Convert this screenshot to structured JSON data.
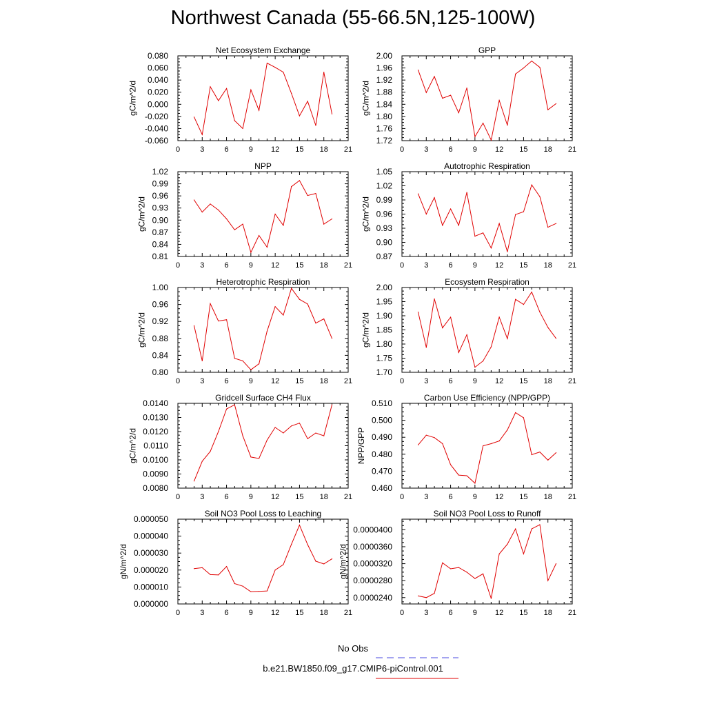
{
  "title": "Northwest Canada (55-66.5N,125-100W)",
  "legend": {
    "obs_label": "No Obs",
    "model_label": "b.e21.BW1850.f09_g17.CMIP6-piControl.001",
    "obs_color": "#4a4ae0",
    "model_color": "#e00000"
  },
  "chart_data": [
    {
      "type": "line",
      "title": "Net Ecosystem Exchange",
      "xlabel": "",
      "ylabel": "gC/m^2/d",
      "xlim": [
        0,
        21
      ],
      "xticks": [
        0,
        3,
        6,
        9,
        12,
        15,
        18,
        21
      ],
      "ylim": [
        -0.06,
        0.08
      ],
      "yticks": [
        "-0.060",
        "-0.040",
        "-0.020",
        "0.000",
        "0.020",
        "0.040",
        "0.060",
        "0.080"
      ],
      "x": [
        2,
        3,
        4,
        5,
        6,
        7,
        8,
        9,
        10,
        11,
        12,
        13,
        14,
        15,
        16,
        17,
        18,
        19
      ],
      "series": [
        {
          "values": [
            -0.021,
            -0.05,
            0.029,
            0.006,
            0.026,
            -0.027,
            -0.04,
            0.024,
            -0.01,
            0.068,
            0.061,
            0.053,
            0.018,
            -0.019,
            0.005,
            -0.035,
            0.053,
            -0.016
          ]
        }
      ]
    },
    {
      "type": "line",
      "title": "GPP",
      "xlabel": "",
      "ylabel": "gC/m^2/d",
      "xlim": [
        0,
        21
      ],
      "xticks": [
        0,
        3,
        6,
        9,
        12,
        15,
        18,
        21
      ],
      "ylim": [
        1.72,
        2.0
      ],
      "yticks": [
        "1.72",
        "1.76",
        "1.80",
        "1.84",
        "1.88",
        "1.92",
        "1.96",
        "2.00"
      ],
      "x": [
        2,
        3,
        4,
        5,
        6,
        7,
        8,
        9,
        10,
        11,
        12,
        13,
        14,
        15,
        16,
        17,
        18,
        19
      ],
      "series": [
        {
          "values": [
            1.953,
            1.879,
            1.932,
            1.86,
            1.87,
            1.812,
            1.894,
            1.733,
            1.778,
            1.722,
            1.853,
            1.771,
            1.94,
            1.96,
            1.983,
            1.962,
            1.822,
            1.842
          ]
        }
      ]
    },
    {
      "type": "line",
      "title": "NPP",
      "xlabel": "",
      "ylabel": "gC/m^2/d",
      "xlim": [
        0,
        21
      ],
      "xticks": [
        0,
        3,
        6,
        9,
        12,
        15,
        18,
        21
      ],
      "ylim": [
        0.81,
        1.02
      ],
      "yticks": [
        "0.81",
        "0.84",
        "0.87",
        "0.90",
        "0.93",
        "0.96",
        "0.99",
        "1.02"
      ],
      "x": [
        2,
        3,
        4,
        5,
        6,
        7,
        8,
        9,
        10,
        11,
        12,
        13,
        14,
        15,
        16,
        17,
        18,
        19
      ],
      "series": [
        {
          "values": [
            0.95,
            0.92,
            0.94,
            0.925,
            0.903,
            0.876,
            0.89,
            0.82,
            0.862,
            0.833,
            0.915,
            0.887,
            0.983,
            0.998,
            0.961,
            0.966,
            0.89,
            0.903
          ]
        }
      ]
    },
    {
      "type": "line",
      "title": "Autotrophic Respiration",
      "xlabel": "",
      "ylabel": "gC/m^2/d",
      "xlim": [
        0,
        21
      ],
      "xticks": [
        0,
        3,
        6,
        9,
        12,
        15,
        18,
        21
      ],
      "ylim": [
        0.87,
        1.05
      ],
      "yticks": [
        "0.87",
        "0.90",
        "0.93",
        "0.96",
        "0.99",
        "1.02",
        "1.05"
      ],
      "x": [
        2,
        3,
        4,
        5,
        6,
        7,
        8,
        9,
        10,
        11,
        12,
        13,
        14,
        15,
        16,
        17,
        18,
        19
      ],
      "series": [
        {
          "values": [
            1.003,
            0.96,
            0.995,
            0.936,
            0.971,
            0.936,
            1.006,
            0.913,
            0.92,
            0.888,
            0.94,
            0.88,
            0.959,
            0.965,
            1.022,
            0.997,
            0.932,
            0.94
          ]
        }
      ]
    },
    {
      "type": "line",
      "title": "Heterotrophic Respiration",
      "xlabel": "",
      "ylabel": "gC/m^2/d",
      "xlim": [
        0,
        21
      ],
      "xticks": [
        0,
        3,
        6,
        9,
        12,
        15,
        18,
        21
      ],
      "ylim": [
        0.8,
        1.0
      ],
      "yticks": [
        "0.80",
        "0.84",
        "0.88",
        "0.92",
        "0.96",
        "1.00"
      ],
      "x": [
        2,
        3,
        4,
        5,
        6,
        7,
        8,
        9,
        10,
        11,
        12,
        13,
        14,
        15,
        16,
        17,
        18,
        19
      ],
      "series": [
        {
          "values": [
            0.91,
            0.827,
            0.962,
            0.921,
            0.924,
            0.833,
            0.827,
            0.806,
            0.82,
            0.897,
            0.955,
            0.935,
            0.998,
            0.972,
            0.961,
            0.916,
            0.926,
            0.88
          ]
        }
      ]
    },
    {
      "type": "line",
      "title": "Ecosystem Respiration",
      "xlabel": "",
      "ylabel": "gC/m^2/d",
      "xlim": [
        0,
        21
      ],
      "xticks": [
        0,
        3,
        6,
        9,
        12,
        15,
        18,
        21
      ],
      "ylim": [
        1.7,
        2.0
      ],
      "yticks": [
        "1.70",
        "1.75",
        "1.80",
        "1.85",
        "1.90",
        "1.95",
        "2.00"
      ],
      "x": [
        2,
        3,
        4,
        5,
        6,
        7,
        8,
        9,
        10,
        11,
        12,
        13,
        14,
        15,
        16,
        17,
        18,
        19
      ],
      "series": [
        {
          "values": [
            1.913,
            1.788,
            1.96,
            1.857,
            1.895,
            1.77,
            1.833,
            1.718,
            1.74,
            1.79,
            1.895,
            1.819,
            1.958,
            1.94,
            1.984,
            1.913,
            1.859,
            1.82
          ]
        }
      ]
    },
    {
      "type": "line",
      "title": "Gridcell Surface CH4 Flux",
      "xlabel": "",
      "ylabel": "gC/m^2/d",
      "xlim": [
        0,
        21
      ],
      "xticks": [
        0,
        3,
        6,
        9,
        12,
        15,
        18,
        21
      ],
      "ylim": [
        0.008,
        0.014
      ],
      "yticks": [
        "0.0080",
        "0.0090",
        "0.0100",
        "0.0110",
        "0.0120",
        "0.0130",
        "0.0140"
      ],
      "x": [
        2,
        3,
        4,
        5,
        6,
        7,
        8,
        9,
        10,
        11,
        12,
        13,
        14,
        15,
        16,
        17,
        18,
        19
      ],
      "series": [
        {
          "values": [
            0.0085,
            0.0099,
            0.0106,
            0.012,
            0.0136,
            0.0139,
            0.0117,
            0.0102,
            0.0101,
            0.0114,
            0.0123,
            0.0119,
            0.0124,
            0.0126,
            0.0115,
            0.0119,
            0.0117,
            0.0139
          ]
        }
      ]
    },
    {
      "type": "line",
      "title": "Carbon Use Efficiency (NPP/GPP)",
      "xlabel": "",
      "ylabel": "NPP/GPP",
      "xlim": [
        0,
        21
      ],
      "xticks": [
        0,
        3,
        6,
        9,
        12,
        15,
        18,
        21
      ],
      "ylim": [
        0.46,
        0.51
      ],
      "yticks": [
        "0.460",
        "0.470",
        "0.480",
        "0.490",
        "0.500",
        "0.510"
      ],
      "x": [
        2,
        3,
        4,
        5,
        6,
        7,
        8,
        9,
        10,
        11,
        12,
        13,
        14,
        15,
        16,
        17,
        18,
        19
      ],
      "series": [
        {
          "values": [
            0.4855,
            0.4912,
            0.4898,
            0.4862,
            0.4738,
            0.4677,
            0.4673,
            0.4629,
            0.4849,
            0.4862,
            0.4878,
            0.4943,
            0.5045,
            0.5015,
            0.4797,
            0.4813,
            0.4765,
            0.4809
          ]
        }
      ]
    },
    {
      "type": "line",
      "title": "Soil NO3 Pool Loss to Leaching",
      "xlabel": "",
      "ylabel": "gN/m^2/d",
      "xlim": [
        0,
        21
      ],
      "xticks": [
        0,
        3,
        6,
        9,
        12,
        15,
        18,
        21
      ],
      "ylim": [
        0.0,
        5e-05
      ],
      "yticks": [
        "0.000000",
        "0.000010",
        "0.000020",
        "0.000030",
        "0.000040",
        "0.000050"
      ],
      "x": [
        2,
        3,
        4,
        5,
        6,
        7,
        8,
        9,
        10,
        11,
        12,
        13,
        14,
        15,
        16,
        17,
        18,
        19
      ],
      "series": [
        {
          "values": [
            2.08e-05,
            2.14e-05,
            1.73e-05,
            1.71e-05,
            2.21e-05,
            1.2e-05,
            1.05e-05,
            7.2e-06,
            7.4e-06,
            7.7e-06,
            2e-05,
            2.32e-05,
            3.52e-05,
            4.65e-05,
            3.5e-05,
            2.52e-05,
            2.36e-05,
            2.66e-05
          ]
        }
      ]
    },
    {
      "type": "line",
      "title": "Soil NO3 Pool Loss to Runoff",
      "xlabel": "",
      "ylabel": "gN/m^2/d",
      "xlim": [
        0,
        21
      ],
      "xticks": [
        0,
        3,
        6,
        9,
        12,
        15,
        18,
        21
      ],
      "ylim": [
        2.25e-05,
        4.25e-05
      ],
      "yticks": [
        "0.0000240",
        "0.0000280",
        "0.0000320",
        "0.0000360",
        "0.0000400"
      ],
      "x": [
        2,
        3,
        4,
        5,
        6,
        7,
        8,
        9,
        10,
        11,
        12,
        13,
        14,
        15,
        16,
        17,
        18,
        19
      ],
      "series": [
        {
          "values": [
            2.44e-05,
            2.4e-05,
            2.5e-05,
            3.22e-05,
            3.08e-05,
            3.11e-05,
            3e-05,
            2.85e-05,
            2.96e-05,
            2.38e-05,
            3.43e-05,
            3.66e-05,
            4.02e-05,
            3.43e-05,
            4.02e-05,
            4.12e-05,
            2.8e-05,
            3.2e-05
          ]
        }
      ]
    }
  ]
}
